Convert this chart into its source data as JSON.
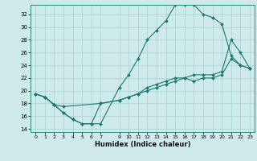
{
  "xlabel": "Humidex (Indice chaleur)",
  "bg_color": "#ceeaea",
  "grid_color": "#aacfcf",
  "line_color": "#1a7a6a",
  "xlim": [
    -0.5,
    23.5
  ],
  "ylim": [
    13.5,
    33.5
  ],
  "xticks": [
    0,
    1,
    2,
    3,
    4,
    5,
    6,
    7,
    9,
    10,
    11,
    12,
    13,
    14,
    15,
    16,
    17,
    18,
    19,
    20,
    21,
    22,
    23
  ],
  "yticks": [
    14,
    16,
    18,
    20,
    22,
    24,
    26,
    28,
    30,
    32
  ],
  "line1_x": [
    0,
    1,
    2,
    3,
    4,
    5,
    6,
    7,
    9,
    10,
    11,
    12,
    13,
    14,
    15,
    16,
    17,
    18,
    19,
    20,
    21,
    22,
    23
  ],
  "line1_y": [
    19.5,
    19.0,
    17.8,
    16.5,
    15.5,
    14.8,
    14.8,
    14.8,
    20.5,
    22.5,
    25.0,
    28.0,
    29.5,
    31.0,
    33.5,
    33.5,
    33.5,
    32.0,
    31.5,
    30.5,
    25.5,
    24.0,
    23.5
  ],
  "line2_x": [
    0,
    1,
    2,
    3,
    7,
    9,
    10,
    11,
    12,
    13,
    14,
    15,
    16,
    17,
    18,
    19,
    20,
    21,
    22,
    23
  ],
  "line2_y": [
    19.5,
    19.0,
    17.8,
    17.5,
    18.0,
    18.5,
    19.0,
    19.5,
    20.0,
    20.5,
    21.0,
    21.5,
    22.0,
    22.5,
    22.5,
    22.5,
    23.0,
    28.0,
    26.0,
    23.5
  ],
  "line3_x": [
    0,
    1,
    2,
    3,
    4,
    5,
    6,
    7,
    9,
    10,
    11,
    12,
    13,
    14,
    15,
    16,
    17,
    18,
    19,
    20,
    21,
    22,
    23
  ],
  "line3_y": [
    19.5,
    19.0,
    17.8,
    16.5,
    15.5,
    14.8,
    14.8,
    18.0,
    18.5,
    19.0,
    19.5,
    20.5,
    21.0,
    21.5,
    22.0,
    22.0,
    21.5,
    22.0,
    22.0,
    22.5,
    25.0,
    24.0,
    23.5
  ]
}
